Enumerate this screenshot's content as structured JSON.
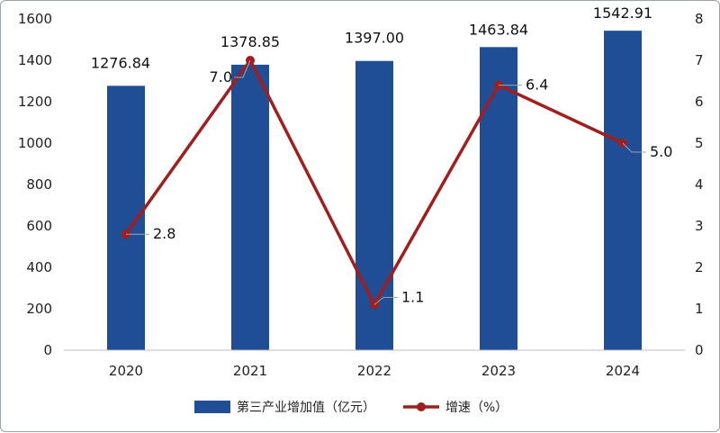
{
  "chart_data": {
    "type": "bar",
    "categories": [
      "2020",
      "2021",
      "2022",
      "2023",
      "2024"
    ],
    "series": [
      {
        "name": "第三产业增加值（亿元）",
        "type": "bar",
        "axis": "left",
        "values": [
          1276.84,
          1378.85,
          1397.0,
          1463.84,
          1542.91
        ],
        "labels": [
          "1276.84",
          "1378.85",
          "1397.00",
          "1463.84",
          "1542.91"
        ],
        "color": "#1f4e96"
      },
      {
        "name": "增速（%）",
        "type": "line",
        "axis": "right",
        "values": [
          2.8,
          7.0,
          1.1,
          6.4,
          5.0
        ],
        "labels": [
          "2.8",
          "7.0",
          "1.1",
          "6.4",
          "5.0"
        ],
        "color": "#a31d1d"
      }
    ],
    "y_left": {
      "ylim": [
        0,
        1600
      ],
      "ticks": [
        "0",
        "200",
        "400",
        "600",
        "800",
        "1000",
        "1200",
        "1400",
        "1600"
      ]
    },
    "y_right": {
      "ylim": [
        0,
        8
      ],
      "ticks": [
        "0",
        "1",
        "2",
        "3",
        "4",
        "5",
        "6",
        "7",
        "8"
      ]
    },
    "grid": false,
    "legend": "bottom"
  }
}
